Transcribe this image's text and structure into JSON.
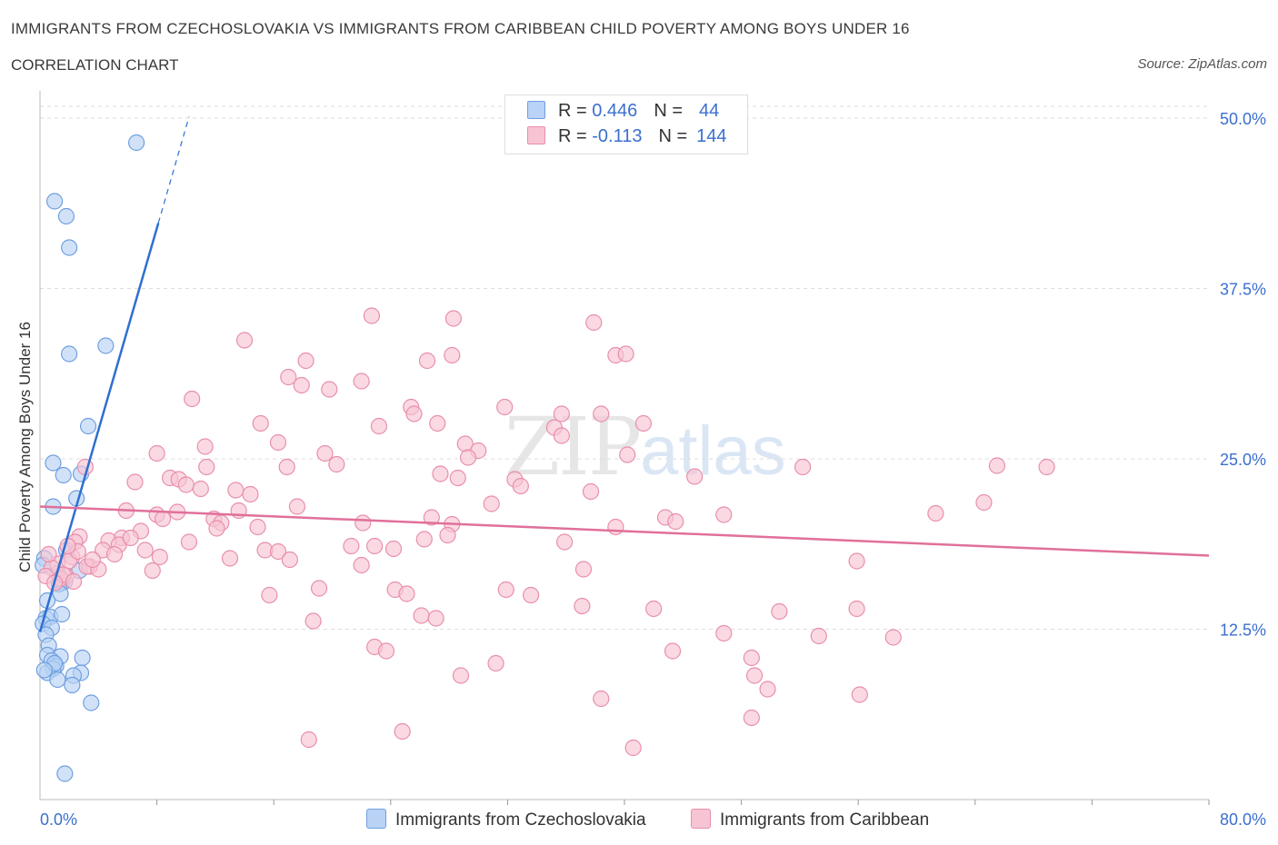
{
  "title": "IMMIGRANTS FROM CZECHOSLOVAKIA VS IMMIGRANTS FROM CARIBBEAN CHILD POVERTY AMONG BOYS UNDER 16",
  "subtitle": "CORRELATION CHART",
  "source": "Source: ZipAtlas.com",
  "watermark": {
    "zip": "ZIP",
    "atlas": "atlas"
  },
  "colors": {
    "blue_fill": "#b9d2f5",
    "blue_stroke": "#6f9fe0",
    "blue_line": "#2f6fd1",
    "pink_fill": "#f7c4d4",
    "pink_stroke": "#e88fab",
    "pink_line": "#e0709a",
    "axis_label": "#3b6fcf",
    "grid": "#dddddd"
  },
  "legend_top": {
    "rows": [
      {
        "r_label": "R =",
        "r_value": "0.446",
        "n_label": "N =",
        "n_value": "44"
      },
      {
        "r_label": "R =",
        "r_value": "-0.113",
        "n_label": "N =",
        "n_value": "144"
      }
    ]
  },
  "chart_data": {
    "type": "scatter",
    "xlabel": "",
    "ylabel": "Child Poverty Among Boys Under 16",
    "xlim": [
      0,
      80
    ],
    "ylim": [
      0,
      52
    ],
    "x_tick_labels": [
      "0.0%",
      "80.0%"
    ],
    "y_ticks": [
      {
        "value": 12.5,
        "label": "12.5%"
      },
      {
        "value": 25,
        "label": "25.0%"
      },
      {
        "value": 37.5,
        "label": "37.5%"
      },
      {
        "value": 50,
        "label": "50.0%"
      }
    ],
    "legend": [
      "Immigrants from Czechoslovakia",
      "Immigrants from Caribbean"
    ],
    "series": [
      {
        "name": "Immigrants from Czechoslovakia",
        "color": "blue",
        "trend": {
          "x0": 0,
          "y0": 12.3,
          "x1": 8.1,
          "y1": 42.3,
          "dash_to_x": 10.2,
          "dash_to_y": 50.1
        },
        "points": [
          [
            6.6,
            48.2
          ],
          [
            1.0,
            43.9
          ],
          [
            1.8,
            42.8
          ],
          [
            2.0,
            40.5
          ],
          [
            4.5,
            33.3
          ],
          [
            2.0,
            32.7
          ],
          [
            3.3,
            27.4
          ],
          [
            0.9,
            24.7
          ],
          [
            1.6,
            23.8
          ],
          [
            2.8,
            23.9
          ],
          [
            2.5,
            22.1
          ],
          [
            0.9,
            21.5
          ],
          [
            1.8,
            18.3
          ],
          [
            0.3,
            17.7
          ],
          [
            2.7,
            16.8
          ],
          [
            1.2,
            16.6
          ],
          [
            1.5,
            15.9
          ],
          [
            1.7,
            16.0
          ],
          [
            1.3,
            15.8
          ],
          [
            1.4,
            15.1
          ],
          [
            0.5,
            14.6
          ],
          [
            0.4,
            13.3
          ],
          [
            0.7,
            13.4
          ],
          [
            0.2,
            12.9
          ],
          [
            0.8,
            12.6
          ],
          [
            1.5,
            13.6
          ],
          [
            0.4,
            12.1
          ],
          [
            0.6,
            11.3
          ],
          [
            0.5,
            10.6
          ],
          [
            1.4,
            10.5
          ],
          [
            2.9,
            10.4
          ],
          [
            0.8,
            10.2
          ],
          [
            1.1,
            9.8
          ],
          [
            0.9,
            9.6
          ],
          [
            0.5,
            9.3
          ],
          [
            2.8,
            9.3
          ],
          [
            2.3,
            9.1
          ],
          [
            1.2,
            8.8
          ],
          [
            2.2,
            8.4
          ],
          [
            3.5,
            7.1
          ],
          [
            1.7,
            1.9
          ],
          [
            0.2,
            17.2
          ],
          [
            1.0,
            10.0
          ],
          [
            0.3,
            9.5
          ]
        ]
      },
      {
        "name": "Immigrants from Caribbean",
        "color": "pink",
        "trend": {
          "x0": 0,
          "y0": 21.5,
          "x1": 80,
          "y1": 17.9
        },
        "points": [
          [
            22.7,
            35.5
          ],
          [
            28.3,
            35.3
          ],
          [
            37.9,
            35.0
          ],
          [
            14.0,
            33.7
          ],
          [
            28.2,
            32.6
          ],
          [
            26.5,
            32.2
          ],
          [
            18.2,
            32.2
          ],
          [
            39.4,
            32.6
          ],
          [
            40.1,
            32.7
          ],
          [
            17.0,
            31.0
          ],
          [
            22.0,
            30.7
          ],
          [
            17.9,
            30.4
          ],
          [
            19.8,
            30.1
          ],
          [
            10.4,
            29.4
          ],
          [
            25.4,
            28.8
          ],
          [
            31.8,
            28.8
          ],
          [
            25.6,
            28.3
          ],
          [
            35.7,
            28.3
          ],
          [
            38.4,
            28.3
          ],
          [
            15.1,
            27.6
          ],
          [
            23.2,
            27.4
          ],
          [
            27.2,
            27.6
          ],
          [
            35.2,
            27.3
          ],
          [
            41.3,
            27.6
          ],
          [
            35.7,
            26.7
          ],
          [
            16.3,
            26.2
          ],
          [
            29.1,
            26.1
          ],
          [
            11.3,
            25.9
          ],
          [
            30.0,
            25.6
          ],
          [
            19.5,
            25.4
          ],
          [
            8.0,
            25.4
          ],
          [
            29.3,
            25.1
          ],
          [
            40.2,
            25.3
          ],
          [
            20.3,
            24.6
          ],
          [
            16.9,
            24.4
          ],
          [
            11.4,
            24.4
          ],
          [
            3.1,
            24.4
          ],
          [
            65.5,
            24.5
          ],
          [
            68.9,
            24.4
          ],
          [
            52.2,
            24.4
          ],
          [
            27.4,
            23.9
          ],
          [
            44.8,
            23.7
          ],
          [
            28.6,
            23.6
          ],
          [
            32.5,
            23.5
          ],
          [
            8.9,
            23.6
          ],
          [
            6.5,
            23.3
          ],
          [
            9.5,
            23.5
          ],
          [
            10.0,
            23.1
          ],
          [
            32.9,
            23.0
          ],
          [
            11.0,
            22.8
          ],
          [
            13.4,
            22.7
          ],
          [
            14.4,
            22.4
          ],
          [
            37.7,
            22.6
          ],
          [
            30.9,
            21.7
          ],
          [
            64.6,
            21.8
          ],
          [
            17.6,
            21.5
          ],
          [
            13.6,
            21.2
          ],
          [
            5.9,
            21.2
          ],
          [
            9.4,
            21.1
          ],
          [
            8.0,
            20.9
          ],
          [
            61.3,
            21.0
          ],
          [
            46.8,
            20.9
          ],
          [
            26.8,
            20.7
          ],
          [
            42.8,
            20.7
          ],
          [
            43.5,
            20.4
          ],
          [
            8.4,
            20.6
          ],
          [
            11.9,
            20.6
          ],
          [
            12.4,
            20.3
          ],
          [
            22.1,
            20.3
          ],
          [
            28.2,
            20.2
          ],
          [
            39.4,
            20.0
          ],
          [
            14.9,
            20.0
          ],
          [
            12.1,
            19.9
          ],
          [
            6.9,
            19.7
          ],
          [
            27.9,
            19.4
          ],
          [
            2.7,
            19.3
          ],
          [
            5.6,
            19.2
          ],
          [
            4.7,
            19.0
          ],
          [
            26.3,
            19.1
          ],
          [
            2.4,
            18.9
          ],
          [
            35.9,
            18.9
          ],
          [
            10.2,
            18.9
          ],
          [
            5.4,
            18.7
          ],
          [
            7.2,
            18.3
          ],
          [
            22.9,
            18.6
          ],
          [
            21.3,
            18.6
          ],
          [
            6.2,
            19.2
          ],
          [
            15.4,
            18.3
          ],
          [
            24.2,
            18.4
          ],
          [
            4.3,
            18.3
          ],
          [
            8.2,
            17.8
          ],
          [
            2.2,
            17.8
          ],
          [
            16.3,
            18.2
          ],
          [
            5.1,
            18.0
          ],
          [
            13.0,
            17.7
          ],
          [
            17.1,
            17.6
          ],
          [
            55.9,
            17.5
          ],
          [
            3.4,
            17.1
          ],
          [
            22.0,
            17.2
          ],
          [
            7.7,
            16.8
          ],
          [
            37.2,
            16.9
          ],
          [
            1.8,
            16.4
          ],
          [
            19.1,
            15.5
          ],
          [
            24.3,
            15.4
          ],
          [
            31.9,
            15.4
          ],
          [
            33.6,
            15.0
          ],
          [
            25.1,
            15.1
          ],
          [
            15.7,
            15.0
          ],
          [
            37.1,
            14.2
          ],
          [
            55.9,
            14.0
          ],
          [
            42.0,
            14.0
          ],
          [
            50.6,
            13.8
          ],
          [
            26.1,
            13.5
          ],
          [
            27.1,
            13.3
          ],
          [
            18.7,
            13.1
          ],
          [
            46.8,
            12.2
          ],
          [
            53.3,
            12.0
          ],
          [
            58.4,
            11.9
          ],
          [
            22.9,
            11.2
          ],
          [
            23.7,
            10.9
          ],
          [
            43.3,
            10.9
          ],
          [
            48.7,
            10.4
          ],
          [
            31.2,
            10.0
          ],
          [
            48.9,
            9.1
          ],
          [
            28.8,
            9.1
          ],
          [
            49.8,
            8.1
          ],
          [
            56.1,
            7.7
          ],
          [
            38.4,
            7.4
          ],
          [
            48.7,
            6.0
          ],
          [
            24.8,
            5.0
          ],
          [
            18.4,
            4.4
          ],
          [
            40.6,
            3.8
          ],
          [
            1.2,
            17.3
          ],
          [
            0.8,
            17.0
          ],
          [
            1.4,
            16.2
          ],
          [
            2.0,
            17.5
          ],
          [
            3.2,
            17.1
          ],
          [
            0.6,
            18.0
          ],
          [
            1.6,
            16.5
          ],
          [
            2.6,
            18.2
          ],
          [
            4.0,
            16.9
          ],
          [
            0.4,
            16.4
          ],
          [
            1.0,
            15.9
          ],
          [
            2.3,
            16.0
          ],
          [
            1.9,
            18.6
          ],
          [
            3.6,
            17.6
          ]
        ]
      }
    ]
  }
}
